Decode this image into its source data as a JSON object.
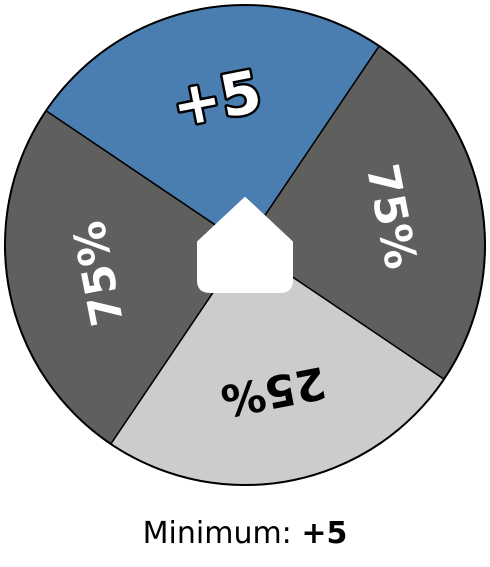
{
  "wheel": {
    "segments": [
      {
        "label": "+5",
        "color": "#4a7db0",
        "text_color": "#ffffff",
        "outlined": true
      },
      {
        "label": "75%",
        "color": "#5f605e",
        "text_color": "#ffffff",
        "outlined": false
      },
      {
        "label": "25%",
        "color": "#cccccc",
        "text_color": "#000000",
        "outlined": false
      },
      {
        "label": "75%",
        "color": "#5f605e",
        "text_color": "#ffffff",
        "outlined": false
      }
    ],
    "pointer_icon": "house-pointer-icon",
    "pointer_color": "#ffffff"
  },
  "caption": {
    "prefix": "Minimum: ",
    "value": "+5"
  }
}
